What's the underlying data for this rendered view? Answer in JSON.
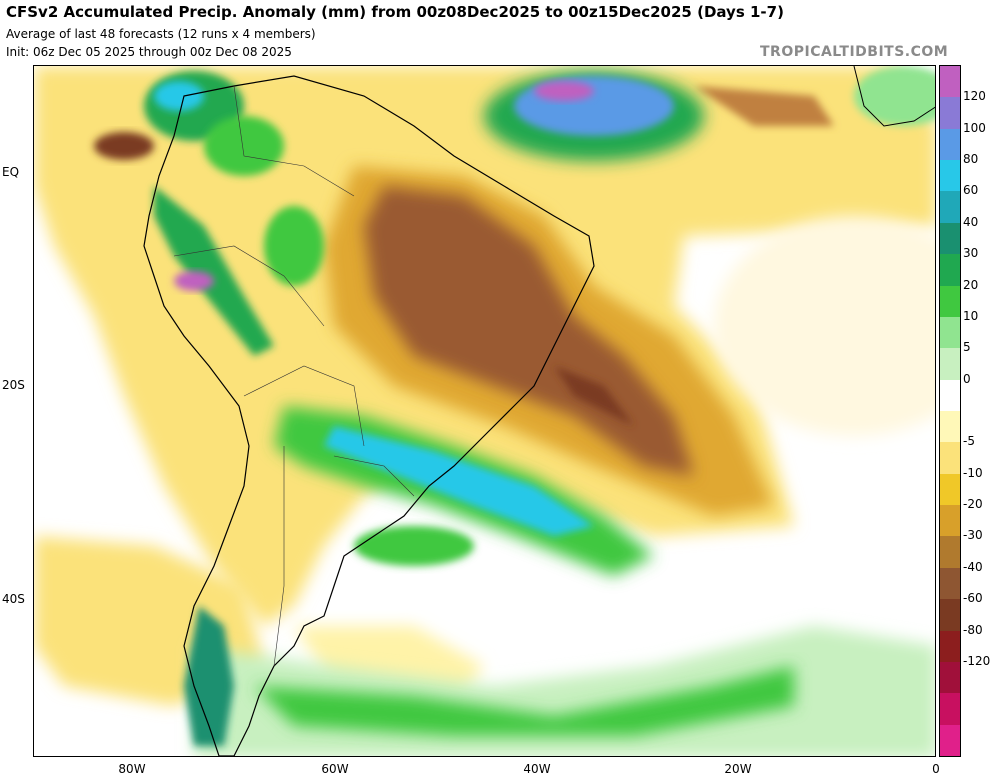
{
  "header": {
    "title": "CFSv2 Accumulated Precip. Anomaly (mm) from 00z08Dec2025 to 00z15Dec2025 (Days 1-7)",
    "subtitle_line1": "Average of last 48 forecasts (12 runs x 4 members)",
    "subtitle_line2": "Init: 06z Dec 05 2025 through 00z Dec 08 2025",
    "brand": "TROPICALTIDBITS.COM"
  },
  "axes": {
    "lat_labels": [
      "EQ",
      "20S",
      "40S"
    ],
    "lon_labels": [
      "80W",
      "60W",
      "40W",
      "20W",
      "0"
    ]
  },
  "colorbar": {
    "labels": [
      "120",
      "100",
      "80",
      "60",
      "40",
      "30",
      "20",
      "10",
      "5",
      "0",
      "-5",
      "-10",
      "-20",
      "-30",
      "-40",
      "-60",
      "-80",
      "-120"
    ],
    "colors": [
      "#c060c0",
      "#8a7ad6",
      "#5a9ae6",
      "#28c8e8",
      "#20a8b8",
      "#1a9070",
      "#20a850",
      "#40c840",
      "#90e490",
      "#c8f0c0",
      "#ffffff",
      "#fff8b8",
      "#fbe27a",
      "#f0c828",
      "#d8a02a",
      "#b07a2e",
      "#8e5632",
      "#7a3a22",
      "#8c1e1e",
      "#a0103a",
      "#c81060",
      "#e0208a"
    ]
  }
}
